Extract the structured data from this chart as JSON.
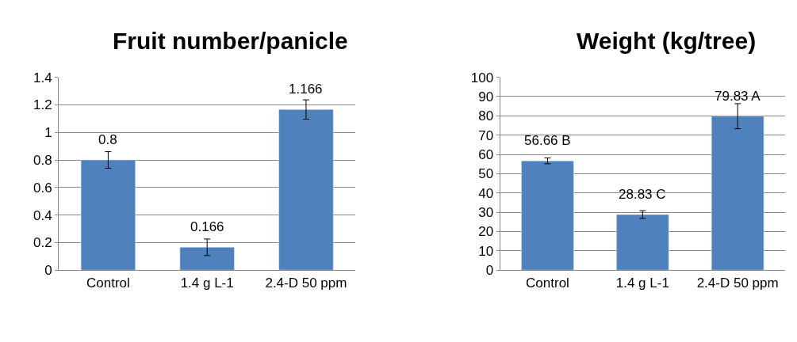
{
  "chart_data": [
    {
      "type": "bar",
      "title": "Fruit number/panicle",
      "categories": [
        "Control",
        "1.4 g L-1",
        "2.4-D 50 ppm"
      ],
      "series": [
        {
          "color": "#4f81bd",
          "values": [
            0.8,
            0.166,
            1.166
          ],
          "errors": [
            0.06,
            0.06,
            0.07
          ],
          "value_labels": [
            "0.8",
            "0.166",
            "1.166"
          ]
        }
      ],
      "ylim": [
        0,
        1.4
      ],
      "yticks": [
        0,
        0.2,
        0.4,
        0.6,
        0.8,
        1,
        1.2,
        1.4
      ],
      "grid": "y"
    },
    {
      "type": "bar",
      "title": "Weight (kg/tree)",
      "categories": [
        "Control",
        "1.4 g L-1",
        "2.4-D 50 ppm"
      ],
      "series": [
        {
          "color": "#4f81bd",
          "values": [
            56.66,
            28.83,
            79.83
          ],
          "errors": [
            1.5,
            2,
            6.5
          ],
          "value_labels": [
            "56.66 B",
            "28.83 C",
            "79.83 A"
          ]
        }
      ],
      "ylim": [
        0,
        100
      ],
      "yticks": [
        0,
        10,
        20,
        30,
        40,
        50,
        60,
        70,
        80,
        90,
        100
      ],
      "grid": "y"
    }
  ]
}
